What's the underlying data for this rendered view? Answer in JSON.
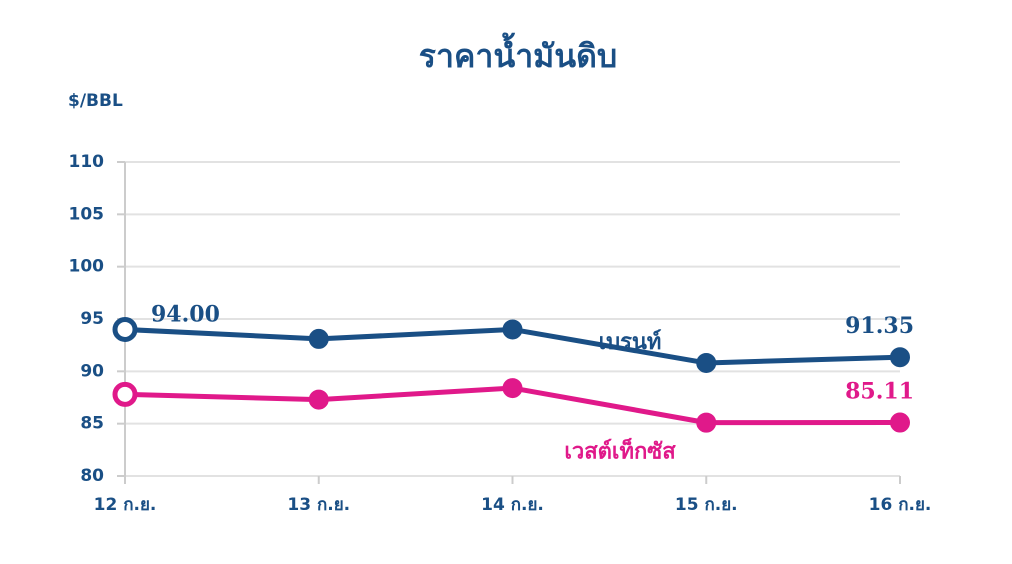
{
  "chart_data": {
    "type": "line",
    "title": "ราคาน้ำมันดิบ",
    "y_label": "$/BBL",
    "categories": [
      "12 ก.ย.",
      "13 ก.ย.",
      "14 ก.ย.",
      "15 ก.ย.",
      "16 ก.ย."
    ],
    "series": [
      {
        "name": "เบรนท์",
        "color": "#1a4f85",
        "values": [
          94.0,
          93.1,
          94.0,
          90.8,
          91.35
        ],
        "value_labels": [
          "94.00",
          null,
          null,
          null,
          "91.35"
        ]
      },
      {
        "name": "เวสต์เท็กซัส",
        "color": "#e0198a",
        "values": [
          87.8,
          87.3,
          88.4,
          85.1,
          85.11
        ],
        "value_labels": [
          null,
          null,
          null,
          null,
          "85.11"
        ]
      }
    ],
    "ylim": [
      80,
      110
    ],
    "yticks": [
      80,
      85,
      90,
      95,
      100,
      105,
      110
    ],
    "grid": true
  }
}
